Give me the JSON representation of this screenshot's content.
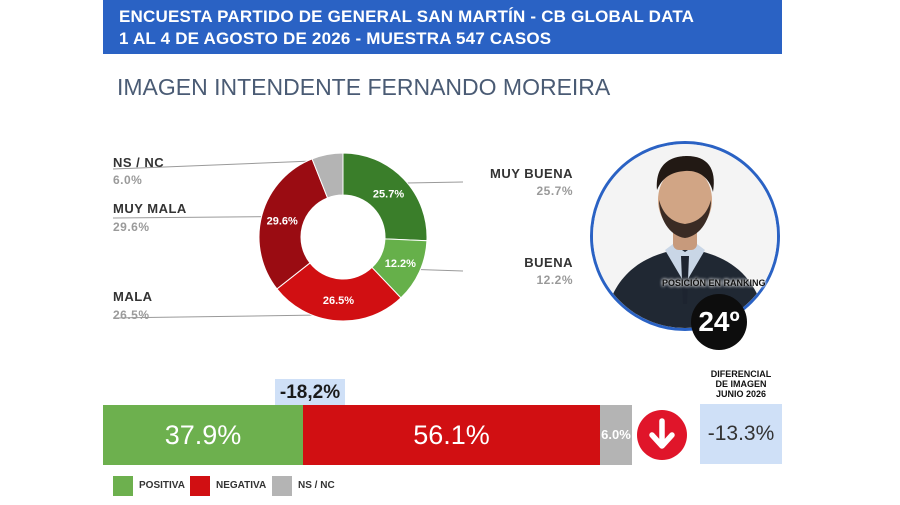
{
  "header": {
    "line1": "ENCUESTA PARTIDO DE GENERAL SAN MARTÍN - CB GLOBAL DATA",
    "line2": "1 AL 4 DE AGOSTO DE 2026 - MUESTRA 547 CASOS"
  },
  "title": "IMAGEN INTENDENTE  FERNANDO MOREIRA",
  "colors": {
    "header_bg": "#2a62c4",
    "muy_buena": "#3a7e2a",
    "buena": "#66b04a",
    "mala": "#d10f12",
    "muy_mala": "#9a0c12",
    "ns_nc": "#b4b4b4",
    "positiva": "#6db04e",
    "negativa": "#d10f12",
    "light_blue": "#cfe0f7"
  },
  "chart_data": [
    {
      "type": "pie",
      "style": "donut",
      "start_angle": "12 o'clock",
      "direction": "clockwise",
      "categories": [
        "MUY BUENA",
        "BUENA",
        "MALA",
        "MUY MALA",
        "NS / NC"
      ],
      "values": [
        25.7,
        12.2,
        26.5,
        29.6,
        6.0
      ],
      "labels": [
        "25.7%",
        "12.2%",
        "26.5%",
        "29.6%",
        "6.0%"
      ],
      "legend_values": [
        "25.7%",
        "12.2%",
        "26.5%",
        "29.6%",
        "6.0%"
      ],
      "colors": [
        "#3a7e2a",
        "#66b04a",
        "#d10f12",
        "#9a0c12",
        "#b4b4b4"
      ]
    },
    {
      "type": "bar",
      "orientation": "horizontal",
      "stacked": true,
      "categories": [
        "POSITIVA",
        "NEGATIVA",
        "NS / NC"
      ],
      "values": [
        37.9,
        56.1,
        6.0
      ],
      "labels": [
        "37.9%",
        "56.1%",
        "6.0%"
      ],
      "colors": [
        "#6db04e",
        "#d10f12",
        "#b4b4b4"
      ],
      "legend": [
        "POSITIVA",
        "NEGATIVA",
        "NS / NC"
      ],
      "legend_position": "bottom-left"
    }
  ],
  "difference": "-18,2%",
  "ranking": {
    "label": "POSICIÓN EN RANKING",
    "value": "24º"
  },
  "diferencial": {
    "title_line1": "DIFERENCIAL",
    "title_line2": "DE IMAGEN",
    "title_line3": "JUNIO 2026",
    "value": "-13.3%"
  },
  "arrow_icon": "arrow-down-icon"
}
